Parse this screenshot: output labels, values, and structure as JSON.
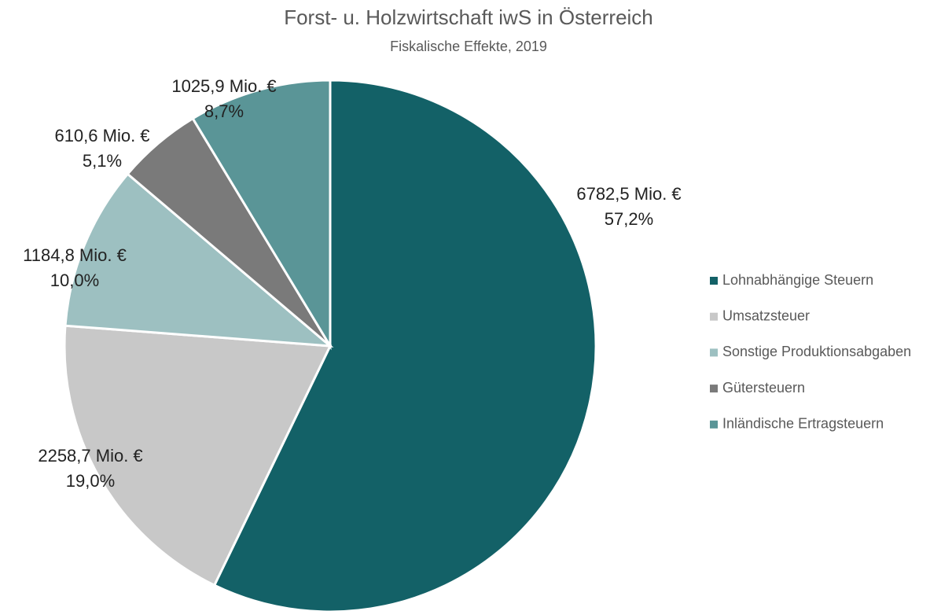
{
  "chart_data": {
    "type": "pie",
    "title": "Forst- u. Holzwirtschaft iwS in Österreich",
    "subtitle": "Fiskalische Effekte, 2019",
    "categories": [
      "Lohnabhängige Steuern",
      "Umsatzsteuer",
      "Sonstige Produktionsabgaben",
      "Gütersteuern",
      "Inländische Ertragsteuern"
    ],
    "values": [
      6782.5,
      2258.7,
      1184.8,
      610.6,
      1025.9
    ],
    "value_labels": [
      "6782,5 Mio. €",
      "2258,7 Mio. €",
      "1184,8 Mio. €",
      "610,6 Mio. €",
      "1025,9 Mio. €"
    ],
    "percent_labels": [
      "57,2%",
      "19,0%",
      "10,0%",
      "5,1%",
      "8,7%"
    ],
    "colors": [
      "#136167",
      "#c8c8c8",
      "#9dc0c1",
      "#7a7a7a",
      "#5a9597"
    ],
    "legend": "right"
  }
}
